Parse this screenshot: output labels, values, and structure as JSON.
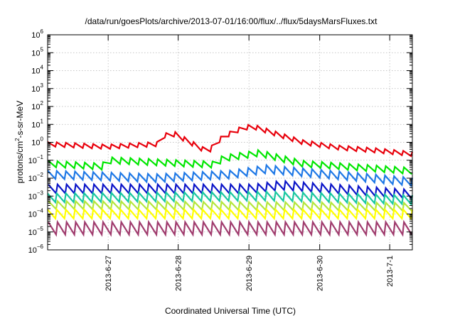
{
  "chart_data": {
    "type": "line",
    "title": "/data/run/goesPlots/archive/2013-07-01/16:00/flux/../flux/5daysMarsFluxes.txt",
    "xlabel": "Coordinated Universal Time (UTC)",
    "ylabel_parts": {
      "pre": "protons/cm",
      "sup": "2",
      "post": "-s-sr-MeV"
    },
    "yscale": "log",
    "ylim_exp": [
      -6,
      6
    ],
    "ytick_exponents": [
      -6,
      -5,
      -4,
      -3,
      -2,
      -1,
      0,
      1,
      2,
      3,
      4,
      5,
      6
    ],
    "ytick_base": "10",
    "xlim_days": [
      0,
      5
    ],
    "x_ticks": [
      {
        "label": "2013-6-27",
        "day": 0.83
      },
      {
        "label": "2013-6-28",
        "day": 1.79
      },
      {
        "label": "2013-6-29",
        "day": 2.76
      },
      {
        "label": "2013-6-30",
        "day": 3.73
      },
      {
        "label": "2013-7-1",
        "day": 4.69
      }
    ],
    "grid": true,
    "legend": "none",
    "series": [
      {
        "color": "#e8000b",
        "base_log10": -0.1,
        "sawtooth_amplitude": 0.25,
        "anchors": [
          [
            0.0,
            -0.1
          ],
          [
            0.8,
            -0.25
          ],
          [
            1.5,
            -0.1
          ],
          [
            1.53,
            0.35
          ],
          [
            1.75,
            0.45
          ],
          [
            2.2,
            -0.55
          ],
          [
            2.25,
            -0.3
          ],
          [
            2.4,
            0.3
          ],
          [
            2.65,
            0.75
          ],
          [
            2.8,
            0.9
          ],
          [
            3.5,
            0.0
          ],
          [
            4.0,
            -0.3
          ],
          [
            4.5,
            -0.45
          ],
          [
            5.0,
            -0.65
          ]
        ]
      },
      {
        "color": "#00e600",
        "base_log10": -1.1,
        "sawtooth_amplitude": 0.35,
        "anchors": [
          [
            0.0,
            -1.2
          ],
          [
            0.75,
            -1.35
          ],
          [
            0.8,
            -1.0
          ],
          [
            2.3,
            -1.25
          ],
          [
            2.4,
            -0.9
          ],
          [
            2.9,
            -0.6
          ],
          [
            3.5,
            -1.2
          ],
          [
            5.0,
            -1.6
          ]
        ]
      },
      {
        "color": "#1e78e6",
        "base_log10": -2.0,
        "sawtooth_amplitude": 0.45,
        "anchors": [
          [
            0.0,
            -1.8
          ],
          [
            1.5,
            -2.0
          ],
          [
            2.5,
            -1.8
          ],
          [
            3.0,
            -1.5
          ],
          [
            5.0,
            -2.2
          ]
        ]
      },
      {
        "color": "#0a14c8",
        "base_log10": -2.7,
        "sawtooth_amplitude": 0.5,
        "anchors": [
          [
            0.0,
            -2.6
          ],
          [
            2.8,
            -2.6
          ],
          [
            3.2,
            -2.4
          ],
          [
            5.0,
            -2.9
          ]
        ]
      },
      {
        "color": "#19c8a0",
        "base_log10": -3.1,
        "sawtooth_amplitude": 0.5,
        "anchors": [
          [
            0.0,
            -3.1
          ],
          [
            3.0,
            -3.0
          ],
          [
            5.0,
            -3.2
          ]
        ]
      },
      {
        "color": "#b4e63c",
        "base_log10": -3.6,
        "sawtooth_amplitude": 0.45,
        "anchors": [
          [
            0.0,
            -3.5
          ],
          [
            5.0,
            -3.6
          ]
        ]
      },
      {
        "color": "#ffff00",
        "base_log10": -4.0,
        "sawtooth_amplitude": 0.5,
        "anchors": [
          [
            0.0,
            -4.0
          ],
          [
            5.0,
            -4.0
          ]
        ]
      },
      {
        "color": "#a03c6e",
        "base_log10": -4.8,
        "sawtooth_amplitude": 0.7,
        "anchors": [
          [
            0.0,
            -4.8
          ],
          [
            5.0,
            -4.8
          ]
        ]
      }
    ]
  }
}
